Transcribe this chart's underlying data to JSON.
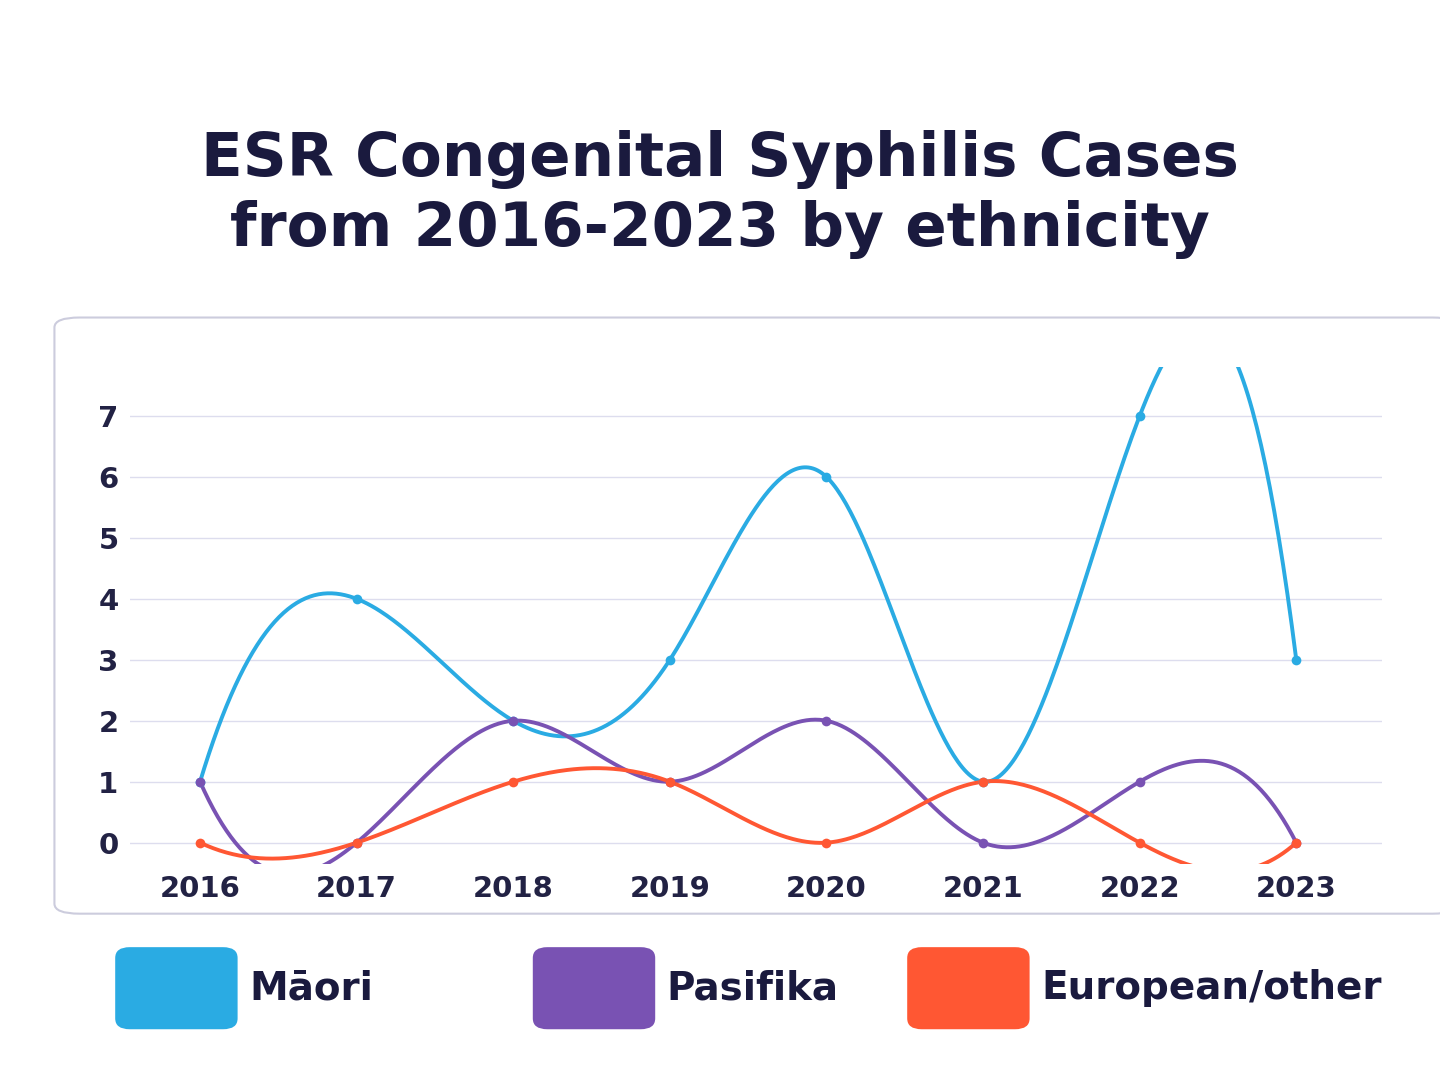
{
  "title": "ESR Congenital Syphilis Cases\nfrom 2016-2023 by ethnicity",
  "years": [
    2016,
    2017,
    2018,
    2019,
    2020,
    2021,
    2022,
    2023
  ],
  "maori": [
    1,
    4,
    2,
    3,
    6,
    1,
    7,
    3
  ],
  "pasifika": [
    1,
    0,
    2,
    1,
    2,
    0,
    1,
    0
  ],
  "european": [
    0,
    0,
    1,
    1,
    0,
    1,
    0,
    0
  ],
  "maori_color": "#2AABE3",
  "pasifika_color": "#7952B3",
  "european_color": "#FF5733",
  "background_color": "#FFFFFF",
  "chart_bg_color": "#FFFFFF",
  "title_color": "#1A1A3E",
  "tick_color": "#222244",
  "grid_color": "#DDDDEE",
  "border_color": "#CCCCDD",
  "ylim": [
    -0.35,
    7.8
  ],
  "yticks": [
    0,
    1,
    2,
    3,
    4,
    5,
    6,
    7
  ],
  "legend_labels": [
    "Māori",
    "Pasifika",
    "European/other"
  ],
  "legend_colors": [
    "#2AABE3",
    "#7952B3",
    "#FF5733"
  ],
  "title_fontsize": 44,
  "axis_fontsize": 21,
  "legend_fontsize": 28,
  "line_width": 2.8,
  "marker_size": 7
}
